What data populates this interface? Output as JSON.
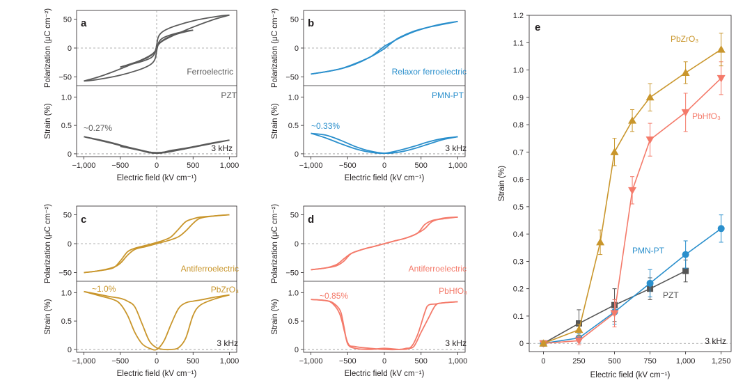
{
  "chart_data": [
    {
      "panel": "a",
      "type": "line",
      "xlabel": "Electric field (kV cm⁻¹)",
      "xlim": [
        -1100,
        1100
      ],
      "xticks": [
        -1000,
        -500,
        0,
        500,
        1000
      ],
      "xtick_labels": [
        "−1,000",
        "−500",
        "0",
        "500",
        "1,000"
      ],
      "color": "#5a5a5a",
      "upper": {
        "ylabel": "Polarization (μC cm⁻²)",
        "ylim": [
          -65,
          65
        ],
        "yticks": [
          50,
          0,
          -50
        ],
        "ytick_labels": [
          "50",
          "0",
          "−50"
        ],
        "label": "Ferroelectric",
        "loops": [
          {
            "x": [
              -1000,
              -800,
              -600,
              -400,
              -200,
              -80,
              -20,
              0,
              20,
              60,
              150,
              300,
              500,
              700,
              900,
              1000
            ],
            "y": [
              -57,
              -50,
              -41,
              -31,
              -20,
              -12,
              -5,
              5,
              18,
              26,
              33,
              40,
              47,
              52,
              56,
              57
            ]
          },
          {
            "x": [
              1000,
              800,
              600,
              400,
              200,
              80,
              20,
              0,
              -20,
              -60,
              -150,
              -300,
              -500,
              -700,
              -900,
              -1000
            ],
            "y": [
              57,
              50,
              41,
              31,
              20,
              12,
              5,
              -5,
              -18,
              -26,
              -33,
              -40,
              -47,
              -52,
              -56,
              -57
            ]
          },
          {
            "x": [
              -500,
              -300,
              -150,
              -50,
              0,
              30,
              80,
              200,
              350,
              500
            ],
            "y": [
              -33,
              -25,
              -18,
              -10,
              -2,
              10,
              17,
              23,
              28,
              31
            ]
          },
          {
            "x": [
              500,
              300,
              150,
              50,
              0,
              -30,
              -80,
              -200,
              -350,
              -500
            ],
            "y": [
              31,
              25,
              18,
              10,
              2,
              -10,
              -17,
              -23,
              -28,
              -33
            ]
          }
        ]
      },
      "lower": {
        "ylabel": "Strain (%)",
        "ylim": [
          -0.05,
          1.2
        ],
        "yticks": [
          1.0,
          0.5,
          0
        ],
        "ytick_labels": [
          "1.0",
          "0.5",
          "0"
        ],
        "material": "PZT",
        "annotation": "~0.27%",
        "frequency": "3 kHz",
        "loops": [
          {
            "x": [
              -1000,
              -800,
              -600,
              -400,
              -200,
              -100,
              0,
              100,
              200,
              400,
              600,
              800,
              1000
            ],
            "y": [
              0.3,
              0.24,
              0.18,
              0.11,
              0.05,
              0.02,
              0.01,
              0.02,
              0.04,
              0.09,
              0.14,
              0.19,
              0.24
            ]
          },
          {
            "x": [
              1000,
              800,
              600,
              400,
              200,
              100,
              0,
              -100,
              -200,
              -400,
              -600,
              -800,
              -1000
            ],
            "y": [
              0.24,
              0.2,
              0.15,
              0.1,
              0.06,
              0.03,
              0.02,
              0.03,
              0.06,
              0.12,
              0.19,
              0.25,
              0.3
            ]
          },
          {
            "x": [
              -500,
              -300,
              -100,
              0,
              100,
              300,
              500
            ],
            "y": [
              0.13,
              0.08,
              0.03,
              0.02,
              0.03,
              0.07,
              0.12
            ]
          }
        ]
      }
    },
    {
      "panel": "b",
      "type": "line",
      "xlabel": "Electric field (kV cm⁻¹)",
      "xlim": [
        -1100,
        1100
      ],
      "xticks": [
        -1000,
        -500,
        0,
        500,
        1000
      ],
      "xtick_labels": [
        "−1,000",
        "−500",
        "0",
        "500",
        "1,000"
      ],
      "color": "#2a8fcc",
      "upper": {
        "ylabel": "Polarization (μC cm⁻²)",
        "ylim": [
          -65,
          65
        ],
        "yticks": [
          50,
          0,
          -50
        ],
        "ytick_labels": [
          "50",
          "0",
          "−50"
        ],
        "label": "Relaxor ferroelectric",
        "loops": [
          {
            "x": [
              -1000,
              -800,
              -600,
              -400,
              -200,
              -100,
              0,
              100,
              200,
              400,
              600,
              800,
              1000
            ],
            "y": [
              -45,
              -41,
              -36,
              -28,
              -16,
              -7,
              3,
              10,
              17,
              28,
              36,
              42,
              46
            ]
          },
          {
            "x": [
              1000,
              800,
              600,
              400,
              200,
              100,
              0,
              -100,
              -200,
              -400,
              -600,
              -800,
              -1000
            ],
            "y": [
              46,
              41,
              36,
              29,
              18,
              9,
              -1,
              -9,
              -16,
              -27,
              -36,
              -41,
              -45
            ]
          }
        ]
      },
      "lower": {
        "ylabel": "Strain (%)",
        "ylim": [
          -0.05,
          1.2
        ],
        "yticks": [
          1.0,
          0.5,
          0
        ],
        "ytick_labels": [
          "1.0",
          "0.5",
          "0"
        ],
        "material": "PMN-PT",
        "annotation": "~0.33%",
        "frequency": "3 kHz",
        "loops": [
          {
            "x": [
              -1000,
              -800,
              -600,
              -400,
              -200,
              0,
              200,
              400,
              600,
              800,
              1000
            ],
            "y": [
              0.36,
              0.33,
              0.24,
              0.13,
              0.05,
              0.01,
              0.03,
              0.09,
              0.17,
              0.25,
              0.3
            ]
          },
          {
            "x": [
              1000,
              800,
              600,
              400,
              200,
              0,
              -200,
              -400,
              -600,
              -800,
              -1000
            ],
            "y": [
              0.3,
              0.27,
              0.21,
              0.13,
              0.06,
              0.01,
              0.03,
              0.09,
              0.18,
              0.28,
              0.36
            ]
          }
        ]
      }
    },
    {
      "panel": "c",
      "type": "line",
      "xlabel": "Electric field (kV cm⁻¹)",
      "xlim": [
        -1100,
        1100
      ],
      "xticks": [
        -1000,
        -500,
        0,
        500,
        1000
      ],
      "xtick_labels": [
        "−1,000",
        "−500",
        "0",
        "500",
        "1,000"
      ],
      "color": "#c9962c",
      "upper": {
        "ylabel": "Polarization (μC cm⁻²)",
        "ylim": [
          -65,
          65
        ],
        "yticks": [
          50,
          0,
          -50
        ],
        "ytick_labels": [
          "50",
          "0",
          "−50"
        ],
        "label": "Antiferroelectric",
        "loops": [
          {
            "x": [
              -1000,
              -800,
              -600,
              -500,
              -400,
              -300,
              -150,
              0,
              150,
              300,
              400,
              500,
              600,
              800,
              1000
            ],
            "y": [
              -50,
              -47,
              -41,
              -34,
              -20,
              -10,
              -5,
              0,
              5,
              12,
              22,
              35,
              44,
              48,
              50
            ]
          },
          {
            "x": [
              1000,
              800,
              600,
              500,
              400,
              300,
              200,
              100,
              0,
              -150,
              -300,
              -400,
              -500,
              -600,
              -800,
              -1000
            ],
            "y": [
              50,
              48,
              46,
              43,
              38,
              25,
              12,
              6,
              2,
              -3,
              -8,
              -14,
              -30,
              -42,
              -47,
              -50
            ]
          }
        ]
      },
      "lower": {
        "ylabel": "Strain (%)",
        "ylim": [
          -0.05,
          1.2
        ],
        "yticks": [
          1.0,
          0.5,
          0
        ],
        "ytick_labels": [
          "1.0",
          "0.5",
          "0"
        ],
        "material": "PbZrO₃",
        "annotation": "~1.0%",
        "frequency": "3 kHz",
        "loops": [
          {
            "x": [
              -1000,
              -800,
              -600,
              -500,
              -400,
              -300,
              -200,
              -100,
              0,
              100,
              200,
              300,
              400,
              500,
              600,
              800,
              1000
            ],
            "y": [
              1.02,
              0.95,
              0.88,
              0.8,
              0.6,
              0.3,
              0.1,
              0.02,
              0.0,
              0.15,
              0.45,
              0.72,
              0.82,
              0.85,
              0.87,
              0.92,
              0.96
            ]
          },
          {
            "x": [
              1000,
              800,
              600,
              500,
              400,
              300,
              200,
              100,
              0,
              -100,
              -200,
              -300,
              -400,
              -500,
              -600,
              -800,
              -1000
            ],
            "y": [
              0.96,
              0.89,
              0.78,
              0.6,
              0.2,
              0.03,
              0.0,
              0.0,
              0.03,
              0.15,
              0.45,
              0.75,
              0.85,
              0.9,
              0.92,
              0.97,
              1.02
            ]
          }
        ]
      }
    },
    {
      "panel": "d",
      "type": "line",
      "xlabel": "Electric field (kV cm⁻¹)",
      "xlim": [
        -1100,
        1100
      ],
      "xticks": [
        -1000,
        -500,
        0,
        500,
        1000
      ],
      "xtick_labels": [
        "−1,000",
        "−500",
        "0",
        "500",
        "1,000"
      ],
      "color": "#f47a6a",
      "upper": {
        "ylabel": "Polarization (μC cm⁻²)",
        "ylim": [
          -65,
          65
        ],
        "yticks": [
          50,
          0,
          -50
        ],
        "ytick_labels": [
          "50",
          "0",
          "−50"
        ],
        "label": "Antiferroelectric",
        "loops": [
          {
            "x": [
              -1000,
              -800,
              -650,
              -550,
              -450,
              -300,
              -150,
              0,
              150,
              300,
              450,
              550,
              650,
              800,
              1000
            ],
            "y": [
              -45,
              -42,
              -38,
              -30,
              -17,
              -10,
              -5,
              0,
              5,
              10,
              18,
              26,
              38,
              44,
              46
            ]
          },
          {
            "x": [
              1000,
              800,
              650,
              550,
              450,
              300,
              150,
              0,
              -150,
              -300,
              -450,
              -550,
              -650,
              -800,
              -1000
            ],
            "y": [
              46,
              43,
              40,
              33,
              18,
              10,
              5,
              0,
              -5,
              -10,
              -17,
              -26,
              -36,
              -42,
              -45
            ]
          }
        ]
      },
      "lower": {
        "ylabel": "Strain (%)",
        "ylim": [
          -0.05,
          1.2
        ],
        "yticks": [
          1.0,
          0.5,
          0
        ],
        "ytick_labels": [
          "1.0",
          "0.5",
          "0"
        ],
        "material": "PbHfO₃",
        "annotation": "~0.85%",
        "frequency": "3 kHz",
        "loops": [
          {
            "x": [
              -1000,
              -800,
              -700,
              -600,
              -500,
              -400,
              -200,
              0,
              200,
              350,
              450,
              550,
              600,
              700,
              800,
              1000
            ],
            "y": [
              0.88,
              0.86,
              0.8,
              0.6,
              0.12,
              0.05,
              0.02,
              0.0,
              0.0,
              0.03,
              0.25,
              0.65,
              0.78,
              0.8,
              0.82,
              0.84
            ]
          },
          {
            "x": [
              1000,
              800,
              700,
              600,
              500,
              400,
              300,
              200,
              0,
              -200,
              -400,
              -500,
              -550,
              -600,
              -700,
              -800,
              -1000
            ],
            "y": [
              0.84,
              0.82,
              0.78,
              0.55,
              0.3,
              0.05,
              0.02,
              0.0,
              0.02,
              0.0,
              0.02,
              0.1,
              0.4,
              0.68,
              0.82,
              0.86,
              0.88
            ]
          }
        ]
      }
    },
    {
      "panel": "e",
      "type": "line",
      "xlabel": "Electric field (kV cm⁻¹)",
      "ylabel": "Strain (%)",
      "xlim": [
        -100,
        1320
      ],
      "ylim": [
        -0.03,
        1.2
      ],
      "xticks": [
        0,
        250,
        500,
        750,
        1000,
        1250
      ],
      "xtick_labels": [
        "0",
        "250",
        "500",
        "750",
        "1,000",
        "1,250"
      ],
      "yticks": [
        0,
        0.1,
        0.2,
        0.3,
        0.4,
        0.5,
        0.6,
        0.7,
        0.8,
        0.9,
        1.0,
        1.1,
        1.2
      ],
      "ytick_labels": [
        "0",
        "0.1",
        "0.2",
        "0.3",
        "0.4",
        "0.5",
        "0.6",
        "0.7",
        "0.8",
        "0.9",
        "1.0",
        "1.1",
        "1.2"
      ],
      "frequency": "3 kHz",
      "series": [
        {
          "name": "PbZrO₃",
          "color": "#c9962c",
          "marker": "triangle-up",
          "x": [
            0,
            250,
            400,
            500,
            625,
            750,
            1000,
            1250
          ],
          "y": [
            0.0,
            0.05,
            0.37,
            0.7,
            0.815,
            0.9,
            0.99,
            1.075
          ],
          "err": [
            0.008,
            0.02,
            0.045,
            0.05,
            0.04,
            0.05,
            0.04,
            0.06
          ]
        },
        {
          "name": "PbHfO₃",
          "color": "#f47a6a",
          "marker": "triangle-down",
          "x": [
            0,
            250,
            500,
            625,
            750,
            1000,
            1250
          ],
          "y": [
            0.0,
            0.01,
            0.11,
            0.56,
            0.745,
            0.845,
            0.97
          ],
          "err": [
            0.008,
            0.015,
            0.05,
            0.05,
            0.06,
            0.07,
            0.06
          ]
        },
        {
          "name": "PMN-PT",
          "color": "#2a8fcc",
          "marker": "circle",
          "x": [
            0,
            250,
            500,
            750,
            1000,
            1250
          ],
          "y": [
            0.0,
            0.02,
            0.115,
            0.22,
            0.325,
            0.42
          ],
          "err": [
            0.008,
            0.015,
            0.045,
            0.05,
            0.05,
            0.05
          ]
        },
        {
          "name": "PZT",
          "color": "#555555",
          "marker": "square",
          "x": [
            0,
            250,
            500,
            750,
            1000
          ],
          "y": [
            0.0,
            0.073,
            0.14,
            0.2,
            0.265
          ],
          "err": [
            0.008,
            0.05,
            0.06,
            0.04,
            0.04
          ]
        }
      ]
    }
  ]
}
